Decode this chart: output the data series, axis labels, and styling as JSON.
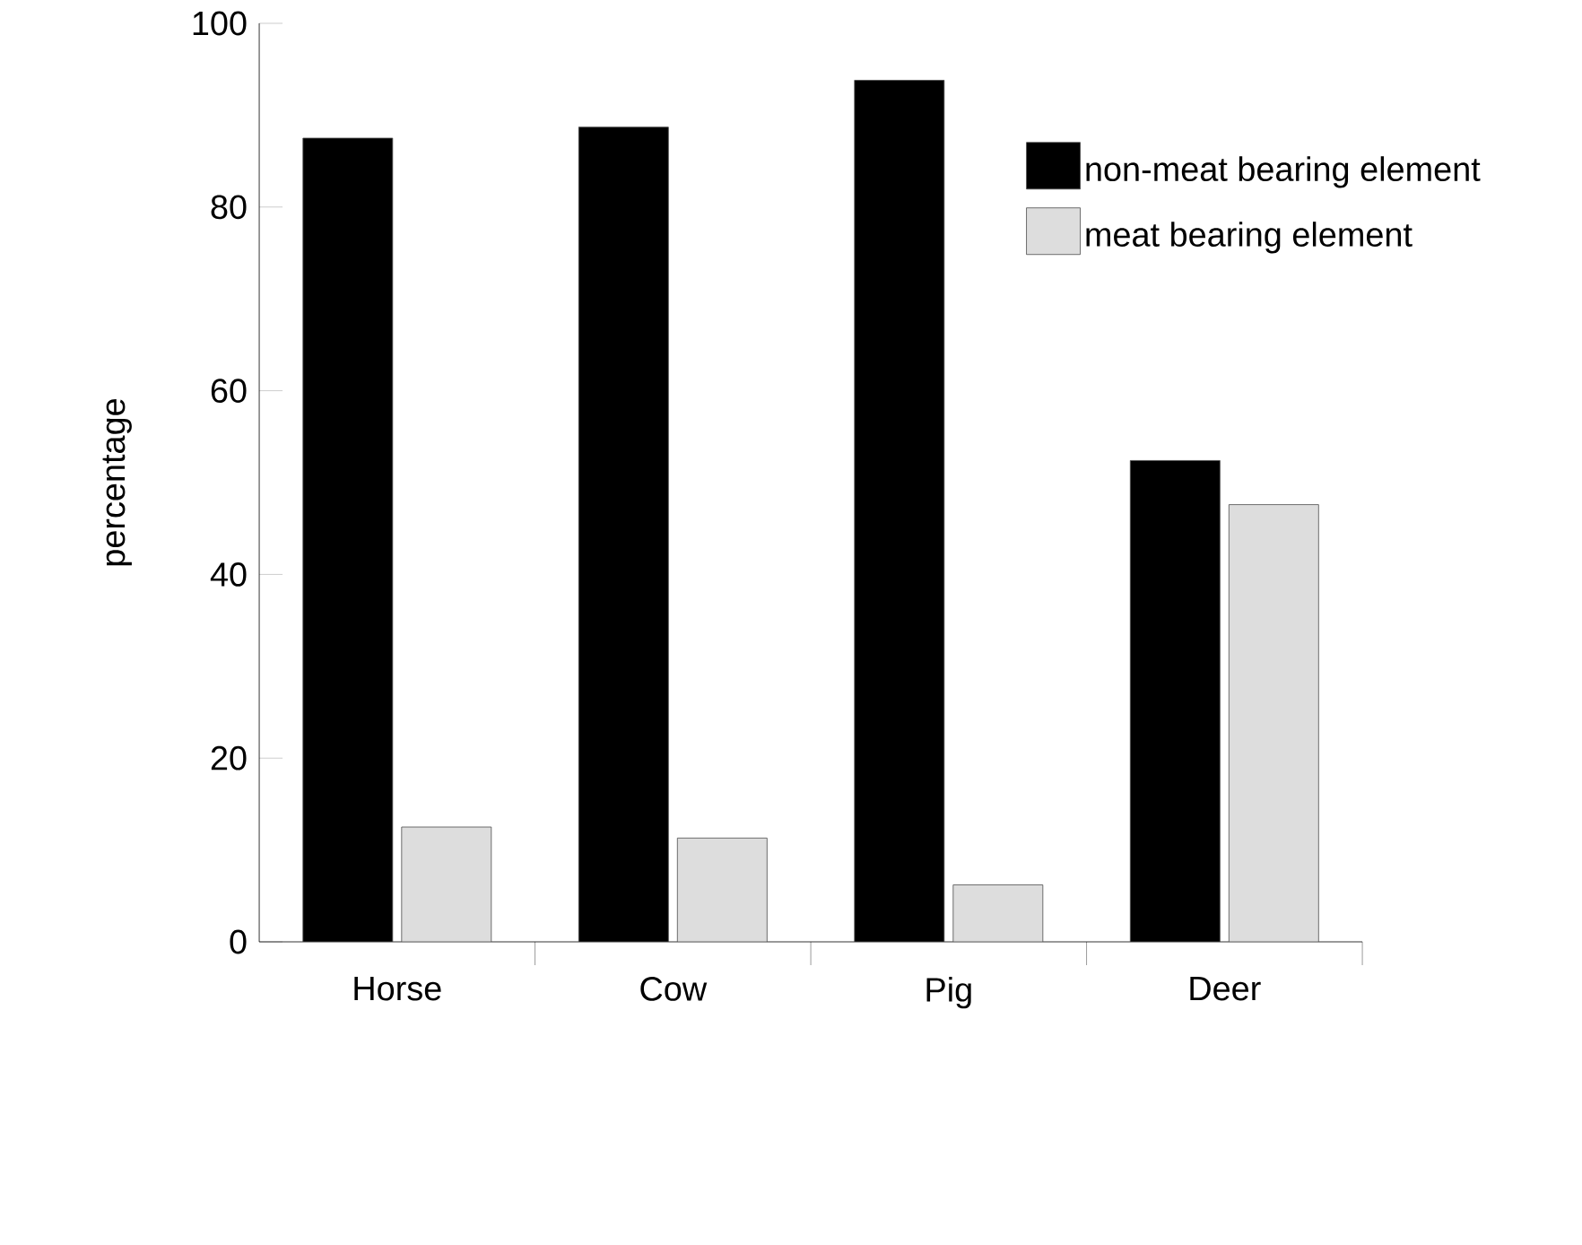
{
  "chart_data": {
    "type": "bar",
    "ylabel": "percentage",
    "categories": [
      "Horse",
      "Cow",
      "Pig",
      "Deer"
    ],
    "series": [
      {
        "name": "non-meat bearing element",
        "color": "#000000",
        "values": [
          87.5,
          88.7,
          93.8,
          52.4
        ]
      },
      {
        "name": "meat bearing element",
        "color": "#dddddd",
        "values": [
          12.5,
          11.3,
          6.2,
          47.6
        ]
      }
    ],
    "ylim": [
      0,
      100
    ],
    "yticks": [
      0,
      20,
      40,
      60,
      80,
      100
    ],
    "legend": "top right"
  }
}
